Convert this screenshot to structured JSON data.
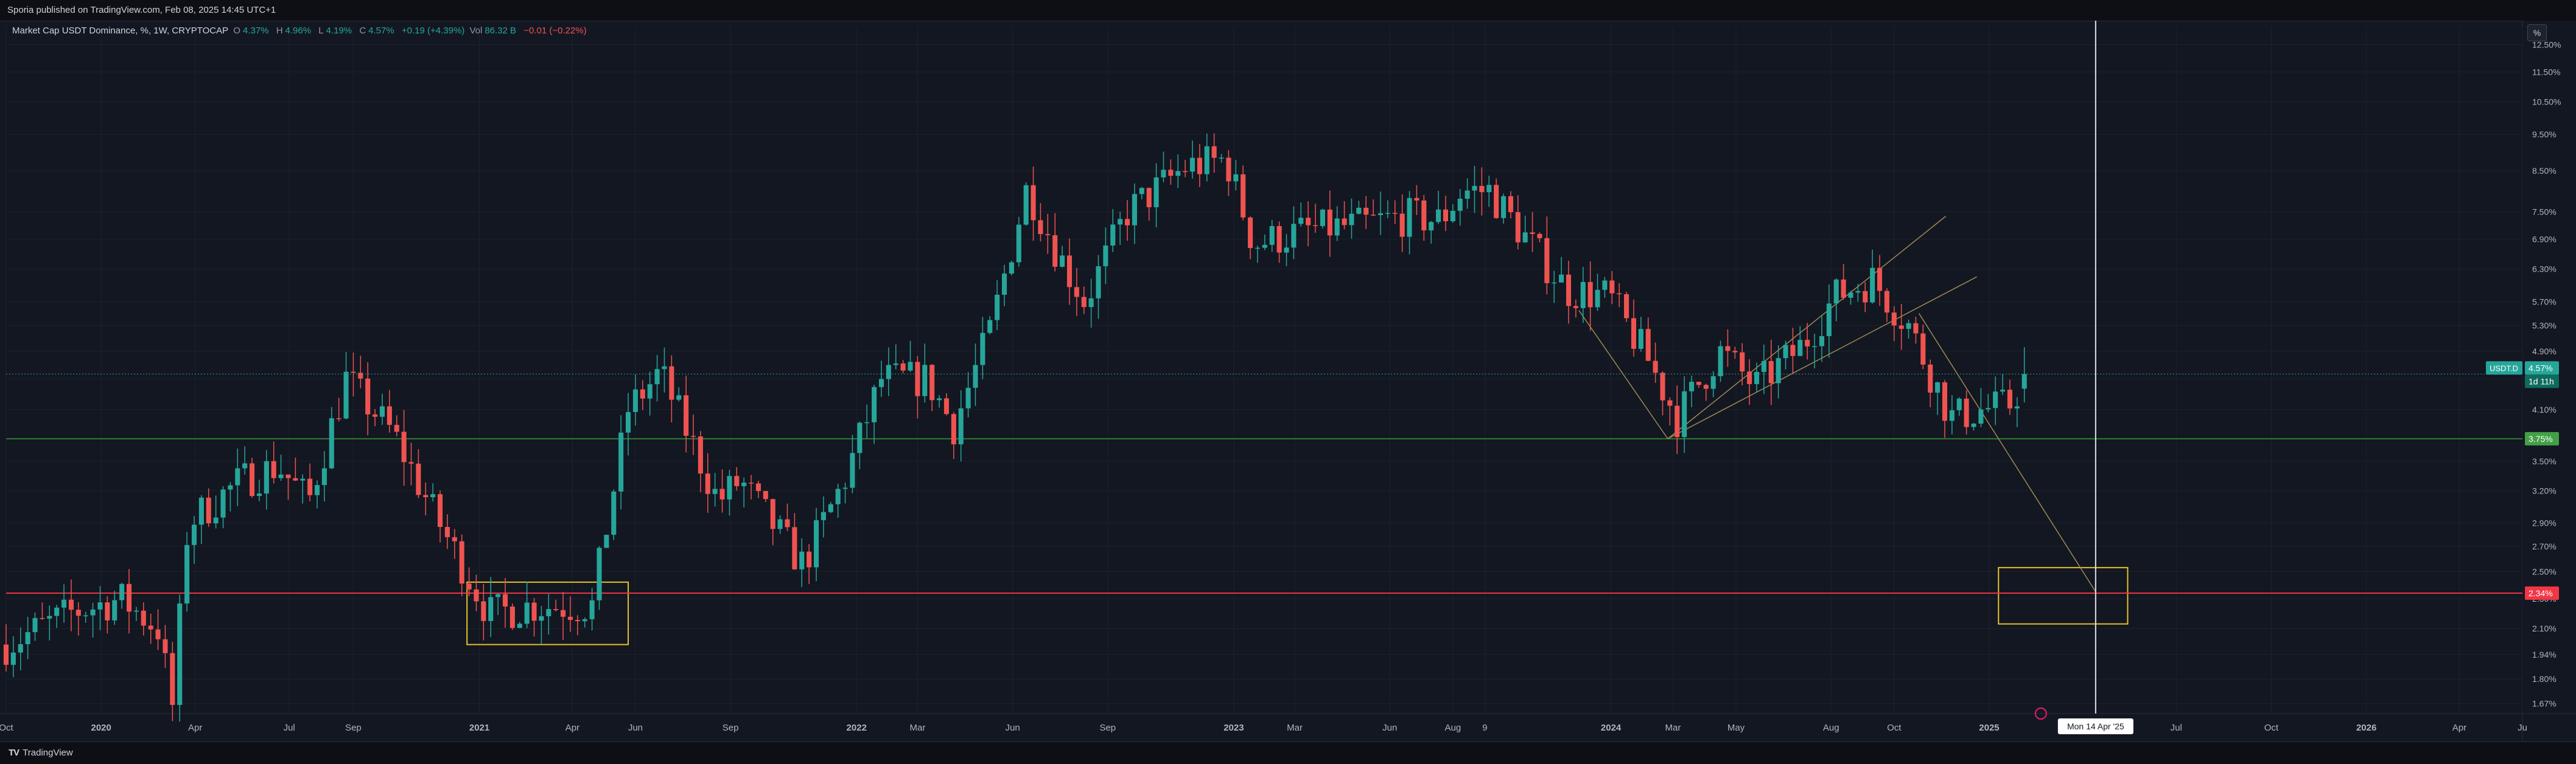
{
  "header": {
    "published": "Sporia published on TradingView.com, Feb 08, 2025 14:45 UTC+1"
  },
  "legend": {
    "title": "Market Cap USDT Dominance, %, 1W, CRYPTOCAP",
    "open_k": "O",
    "open_v": "4.37%",
    "high_k": "H",
    "high_v": "4.96%",
    "low_k": "L",
    "low_v": "4.19%",
    "close_k": "C",
    "close_v": "4.57%",
    "change": "+0.19 (+4.39%)",
    "vol_k": "Vol",
    "vol_v": "86.32 B",
    "vol_change": "−0.01 (−0.22%)"
  },
  "toolbar": {
    "percent_label": "%"
  },
  "footer": {
    "brand": "TradingView"
  },
  "colors": {
    "up": "#26a69a",
    "down": "#ef5350",
    "grid": "#1e222d",
    "support": "#2e7d32",
    "resistance": "#f23645",
    "box": "#e6c229"
  },
  "chart_data": {
    "type": "candlestick",
    "symbol": "USDT.D",
    "timeframe": "1W",
    "y_scale": "log",
    "ylim": [
      1.62,
      13.2
    ],
    "y_ticks": [
      1.67,
      1.8,
      1.94,
      2.1,
      2.3,
      2.5,
      2.7,
      2.9,
      3.2,
      3.5,
      3.75,
      4.1,
      4.5,
      4.9,
      5.3,
      5.7,
      6.3,
      6.9,
      7.5,
      8.5,
      9.5,
      10.5,
      11.5,
      12.5
    ],
    "y_tick_labels": [
      "1.67%",
      "1.80%",
      "1.94%",
      "2.10%",
      "2.30%",
      "2.50%",
      "2.70%",
      "2.90%",
      "3.20%",
      "3.50%",
      "3.75%",
      "4.10%",
      "4.50%",
      "4.90%",
      "5.30%",
      "5.70%",
      "6.30%",
      "6.90%",
      "7.50%",
      "8.50%",
      "9.50%",
      "10.50%",
      "11.50%",
      "12.50%"
    ],
    "x_range": [
      "2019-10-01",
      "2026-06-01"
    ],
    "x_ticks": [
      {
        "date": "2019-10-01",
        "label": "Oct"
      },
      {
        "date": "2020-01-01",
        "label": "2020"
      },
      {
        "date": "2020-04-01",
        "label": "Apr"
      },
      {
        "date": "2020-07-01",
        "label": "Jul"
      },
      {
        "date": "2020-09-01",
        "label": "Sep"
      },
      {
        "date": "2021-01-01",
        "label": "2021"
      },
      {
        "date": "2021-04-01",
        "label": "Apr"
      },
      {
        "date": "2021-06-01",
        "label": "Jun"
      },
      {
        "date": "2021-09-01",
        "label": "Sep"
      },
      {
        "date": "2022-01-01",
        "label": "2022"
      },
      {
        "date": "2022-03-01",
        "label": "Mar"
      },
      {
        "date": "2022-06-01",
        "label": "Jun"
      },
      {
        "date": "2022-09-01",
        "label": "Sep"
      },
      {
        "date": "2023-01-01",
        "label": "2023"
      },
      {
        "date": "2023-03-01",
        "label": "Mar"
      },
      {
        "date": "2023-06-01",
        "label": "Jun"
      },
      {
        "date": "2023-08-01",
        "label": "Aug"
      },
      {
        "date": "2023-09-01",
        "label": "9"
      },
      {
        "date": "2024-01-01",
        "label": "2024"
      },
      {
        "date": "2024-03-01",
        "label": "Mar"
      },
      {
        "date": "2024-05-01",
        "label": "May"
      },
      {
        "date": "2024-08-01",
        "label": "Aug"
      },
      {
        "date": "2024-10-01",
        "label": "Oct"
      },
      {
        "date": "2025-01-01",
        "label": "2025"
      },
      {
        "date": "2025-07-01",
        "label": "Jul"
      },
      {
        "date": "2025-10-01",
        "label": "Oct"
      },
      {
        "date": "2026-01-01",
        "label": "2026"
      },
      {
        "date": "2026-04-01",
        "label": "Apr"
      },
      {
        "date": "2026-06-01",
        "label": "Ju"
      }
    ],
    "last_price": 4.57,
    "last_price_label": "4.57%",
    "last_symbol_label": "USDT.D",
    "countdown_label": "1d 11h",
    "support": {
      "value": 3.75,
      "label": "3.75%"
    },
    "resistance": {
      "value": 2.34,
      "label": "2.34%"
    },
    "crosshair": {
      "date": "2025-04-14",
      "label": "Mon 14 Apr '25"
    },
    "boxes": [
      {
        "x1": "2020-12-20",
        "x2": "2021-05-25",
        "y1": 2.0,
        "y2": 2.42
      },
      {
        "x1": "2025-01-10",
        "x2": "2025-05-15",
        "y1": 2.13,
        "y2": 2.53
      }
    ],
    "channel_lines": [
      {
        "from": [
          "2024-02-25",
          3.75
        ],
        "to": [
          "2024-11-20",
          7.4
        ]
      },
      {
        "from": [
          "2024-02-25",
          3.75
        ],
        "to": [
          "2024-12-20",
          6.15
        ]
      }
    ],
    "trend_lines": [
      {
        "from": [
          "2023-12-01",
          5.55
        ],
        "to": [
          "2024-02-25",
          3.75
        ]
      },
      {
        "from": [
          "2024-10-25",
          5.5
        ],
        "to": [
          "2025-04-14",
          2.35
        ]
      }
    ],
    "anchors": [
      {
        "date": "2019-10-01",
        "value": 2.0
      },
      {
        "date": "2019-12-01",
        "value": 2.2
      },
      {
        "date": "2020-01-20",
        "value": 2.3
      },
      {
        "date": "2020-02-25",
        "value": 2.1
      },
      {
        "date": "2020-03-10",
        "value": 1.66
      },
      {
        "date": "2020-03-25",
        "value": 2.9
      },
      {
        "date": "2020-05-15",
        "value": 3.3
      },
      {
        "date": "2020-06-20",
        "value": 3.45
      },
      {
        "date": "2020-07-20",
        "value": 3.1
      },
      {
        "date": "2020-08-25",
        "value": 4.5
      },
      {
        "date": "2020-10-10",
        "value": 3.8
      },
      {
        "date": "2020-11-20",
        "value": 2.95
      },
      {
        "date": "2021-01-10",
        "value": 2.2
      },
      {
        "date": "2021-02-20",
        "value": 2.25
      },
      {
        "date": "2021-04-20",
        "value": 2.25
      },
      {
        "date": "2021-05-25",
        "value": 4.1
      },
      {
        "date": "2021-06-25",
        "value": 4.6
      },
      {
        "date": "2021-08-20",
        "value": 3.1
      },
      {
        "date": "2021-09-10",
        "value": 3.3
      },
      {
        "date": "2021-11-10",
        "value": 2.55
      },
      {
        "date": "2021-12-20",
        "value": 3.3
      },
      {
        "date": "2022-01-25",
        "value": 4.5
      },
      {
        "date": "2022-03-10",
        "value": 4.5
      },
      {
        "date": "2022-04-05",
        "value": 3.9
      },
      {
        "date": "2022-05-10",
        "value": 5.2
      },
      {
        "date": "2022-06-15",
        "value": 8.1
      },
      {
        "date": "2022-07-15",
        "value": 6.6
      },
      {
        "date": "2022-08-10",
        "value": 5.7
      },
      {
        "date": "2022-09-20",
        "value": 7.5
      },
      {
        "date": "2022-11-15",
        "value": 8.6
      },
      {
        "date": "2022-12-25",
        "value": 8.8
      },
      {
        "date": "2023-01-20",
        "value": 6.8
      },
      {
        "date": "2023-03-15",
        "value": 7.1
      },
      {
        "date": "2023-05-01",
        "value": 7.2
      },
      {
        "date": "2023-06-20",
        "value": 7.4
      },
      {
        "date": "2023-07-20",
        "value": 7.3
      },
      {
        "date": "2023-08-10",
        "value": 8.0
      },
      {
        "date": "2023-09-05",
        "value": 8.0
      },
      {
        "date": "2023-10-15",
        "value": 6.8
      },
      {
        "date": "2023-11-20",
        "value": 5.9
      },
      {
        "date": "2023-12-30",
        "value": 5.8
      },
      {
        "date": "2024-02-05",
        "value": 4.8
      },
      {
        "date": "2024-03-05",
        "value": 4.0
      },
      {
        "date": "2024-04-15",
        "value": 4.9
      },
      {
        "date": "2024-05-20",
        "value": 4.4
      },
      {
        "date": "2024-07-05",
        "value": 5.0
      },
      {
        "date": "2024-08-05",
        "value": 5.8
      },
      {
        "date": "2024-09-10",
        "value": 6.1
      },
      {
        "date": "2024-10-15",
        "value": 5.3
      },
      {
        "date": "2024-11-25",
        "value": 4.0
      },
      {
        "date": "2024-12-25",
        "value": 4.1
      },
      {
        "date": "2025-01-20",
        "value": 4.15
      },
      {
        "date": "2025-02-08",
        "value": 4.57
      }
    ]
  }
}
